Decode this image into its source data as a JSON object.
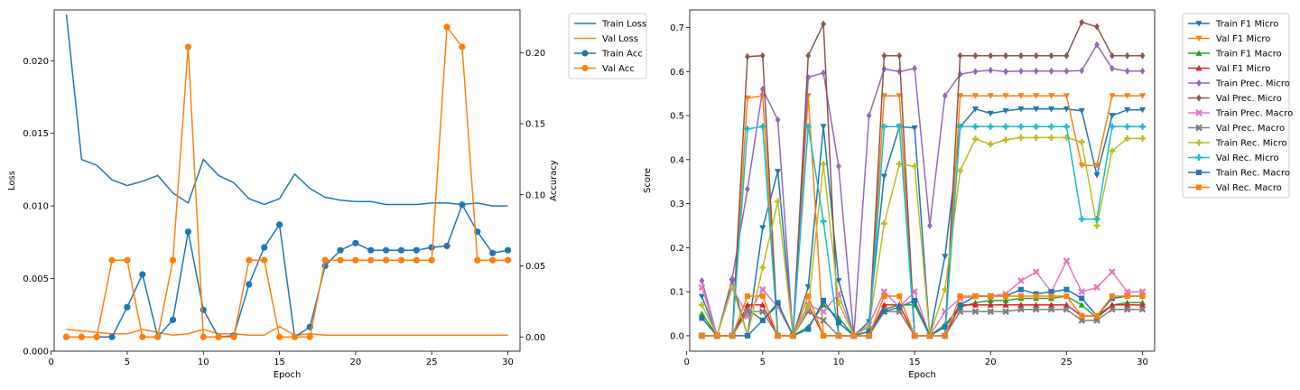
{
  "chart_data": [
    {
      "type": "line",
      "xlabel": "Epoch",
      "ylabel": "Loss",
      "ylabel_right": "Accuracy",
      "xlim": [
        1,
        30
      ],
      "xticks": [
        0,
        5,
        10,
        15,
        20,
        25,
        30
      ],
      "ylim": [
        0,
        0.0235
      ],
      "yticks": [
        0.0,
        0.005,
        0.01,
        0.015,
        0.02
      ],
      "ytick_labels": [
        "0.000",
        "0.005",
        "0.010",
        "0.015",
        "0.020"
      ],
      "ylim_right": [
        -0.01,
        0.23
      ],
      "yticks_right": [
        0.0,
        0.05,
        0.1,
        0.15,
        0.2
      ],
      "ytick_labels_right": [
        "0.00",
        "0.05",
        "0.10",
        "0.15",
        "0.20"
      ],
      "grid": false,
      "legend_position": "outside-right-top",
      "x": [
        1,
        2,
        3,
        4,
        5,
        6,
        7,
        8,
        9,
        10,
        11,
        12,
        13,
        14,
        15,
        16,
        17,
        18,
        19,
        20,
        21,
        22,
        23,
        24,
        25,
        26,
        27,
        28,
        29,
        30
      ],
      "series": [
        {
          "name": "Train Loss",
          "axis": "left",
          "color": "#1f77b4",
          "marker": "none",
          "values": [
            0.0232,
            0.0132,
            0.0128,
            0.0118,
            0.0114,
            0.0117,
            0.0121,
            0.0109,
            0.0102,
            0.0132,
            0.0121,
            0.0116,
            0.0105,
            0.0101,
            0.0105,
            0.0122,
            0.0112,
            0.0106,
            0.0104,
            0.0103,
            0.0103,
            0.0101,
            0.0101,
            0.0101,
            0.0102,
            0.0102,
            0.0101,
            0.0102,
            0.01,
            0.01
          ]
        },
        {
          "name": "Val Loss",
          "axis": "left",
          "color": "#ff7f0e",
          "marker": "none",
          "values": [
            0.0015,
            0.0014,
            0.0013,
            0.0012,
            0.0012,
            0.0015,
            0.0013,
            0.0011,
            0.0012,
            0.0015,
            0.0012,
            0.0012,
            0.0011,
            0.0011,
            0.0017,
            0.0011,
            0.0012,
            0.0011,
            0.0011,
            0.0011,
            0.0011,
            0.0011,
            0.0011,
            0.0011,
            0.0011,
            0.0011,
            0.0011,
            0.0011,
            0.0011,
            0.0011
          ]
        },
        {
          "name": "Train Acc",
          "axis": "right",
          "color": "#1f77b4",
          "marker": "circle",
          "values": [
            0.0,
            0.0,
            0.0,
            0.0,
            0.021,
            0.044,
            0.0,
            0.012,
            0.074,
            0.019,
            0.0,
            0.001,
            0.037,
            0.063,
            0.079,
            0.0,
            0.007,
            0.05,
            0.061,
            0.066,
            0.061,
            0.061,
            0.061,
            0.061,
            0.063,
            0.064,
            0.093,
            0.074,
            0.059,
            0.061
          ]
        },
        {
          "name": "Val Acc",
          "axis": "right",
          "color": "#ff7f0e",
          "marker": "circle",
          "values": [
            0.0,
            0.0,
            0.0,
            0.054,
            0.054,
            0.0,
            0.0,
            0.054,
            0.204,
            0.0,
            0.0,
            0.0,
            0.054,
            0.054,
            0.0,
            0.0,
            0.0,
            0.054,
            0.054,
            0.054,
            0.054,
            0.054,
            0.054,
            0.054,
            0.054,
            0.218,
            0.204,
            0.054,
            0.054,
            0.054
          ]
        }
      ]
    },
    {
      "type": "line",
      "xlabel": "Epoch",
      "ylabel": "Score",
      "xlim": [
        1,
        30
      ],
      "xticks": [
        0,
        5,
        10,
        15,
        20,
        25,
        30
      ],
      "ylim": [
        -0.035,
        0.74
      ],
      "yticks": [
        0.0,
        0.1,
        0.2,
        0.3,
        0.4,
        0.5,
        0.6,
        0.7
      ],
      "ytick_labels": [
        "0.0",
        "0.1",
        "0.2",
        "0.3",
        "0.4",
        "0.5",
        "0.6",
        "0.7"
      ],
      "grid": false,
      "legend_position": "outside-right-top",
      "x": [
        1,
        2,
        3,
        4,
        5,
        6,
        7,
        8,
        9,
        10,
        11,
        12,
        13,
        14,
        15,
        16,
        17,
        18,
        19,
        20,
        21,
        22,
        23,
        24,
        25,
        26,
        27,
        28,
        29,
        30
      ],
      "series": [
        {
          "name": "Train F1 Micro",
          "color": "#1f77b4",
          "marker": "tri-down",
          "values": [
            0.089,
            0.0,
            0.123,
            0.0,
            0.245,
            0.373,
            0.0,
            0.111,
            0.475,
            0.125,
            0.0,
            0.032,
            0.362,
            0.475,
            0.472,
            0.0,
            0.18,
            0.474,
            0.515,
            0.505,
            0.511,
            0.515,
            0.515,
            0.515,
            0.515,
            0.511,
            0.365,
            0.5,
            0.513,
            0.513
          ]
        },
        {
          "name": "Val F1 Micro",
          "color": "#ff7f0e",
          "marker": "tri-down",
          "values": [
            0.0,
            0.0,
            0.0,
            0.54,
            0.545,
            0.0,
            0.0,
            0.545,
            0.0,
            0.0,
            0.0,
            0.0,
            0.545,
            0.545,
            0.0,
            0.0,
            0.0,
            0.545,
            0.545,
            0.545,
            0.545,
            0.545,
            0.545,
            0.545,
            0.545,
            0.387,
            0.387,
            0.545,
            0.545,
            0.545
          ]
        },
        {
          "name": "Train F1 Macro",
          "color": "#2ca02c",
          "marker": "tri-up",
          "values": [
            0.05,
            0.0,
            0.0,
            0.06,
            0.035,
            0.07,
            0.0,
            0.02,
            0.07,
            0.04,
            0.0,
            0.01,
            0.06,
            0.07,
            0.07,
            0.0,
            0.025,
            0.065,
            0.075,
            0.08,
            0.08,
            0.085,
            0.085,
            0.085,
            0.09,
            0.07,
            0.04,
            0.07,
            0.075,
            0.075
          ]
        },
        {
          "name": "Val F1 Micro",
          "color": "#d62728",
          "marker": "tri-up",
          "values": [
            0.0,
            0.0,
            0.0,
            0.07,
            0.07,
            0.0,
            0.0,
            0.07,
            0.0,
            0.0,
            0.0,
            0.0,
            0.07,
            0.07,
            0.0,
            0.0,
            0.0,
            0.07,
            0.07,
            0.07,
            0.07,
            0.07,
            0.07,
            0.07,
            0.07,
            0.045,
            0.045,
            0.07,
            0.07,
            0.07
          ]
        },
        {
          "name": "Train Prec. Micro",
          "color": "#9467bd",
          "marker": "diamond",
          "values": [
            0.125,
            0.0,
            0.13,
            0.333,
            0.56,
            0.49,
            0.0,
            0.587,
            0.597,
            0.385,
            0.0,
            0.5,
            0.606,
            0.6,
            0.607,
            0.25,
            0.545,
            0.594,
            0.6,
            0.603,
            0.6,
            0.601,
            0.601,
            0.601,
            0.601,
            0.602,
            0.661,
            0.607,
            0.601,
            0.601
          ]
        },
        {
          "name": "Val Prec. Micro",
          "color": "#8c564b",
          "marker": "diamond",
          "values": [
            0.0,
            0.0,
            0.0,
            0.634,
            0.636,
            0.0,
            0.0,
            0.636,
            0.708,
            0.0,
            0.0,
            0.0,
            0.636,
            0.636,
            0.0,
            0.0,
            0.0,
            0.636,
            0.636,
            0.636,
            0.636,
            0.636,
            0.636,
            0.636,
            0.636,
            0.712,
            0.702,
            0.636,
            0.636,
            0.636
          ]
        },
        {
          "name": "Train Prec. Macro",
          "color": "#e377c2",
          "marker": "x",
          "values": [
            0.11,
            0.0,
            0.11,
            0.045,
            0.105,
            0.065,
            0.0,
            0.07,
            0.055,
            0.095,
            0.0,
            0.025,
            0.1,
            0.065,
            0.1,
            0.0,
            0.055,
            0.085,
            0.09,
            0.09,
            0.095,
            0.125,
            0.145,
            0.1,
            0.17,
            0.1,
            0.11,
            0.145,
            0.1,
            0.1
          ]
        },
        {
          "name": "Val Prec. Macro",
          "color": "#7f7f7f",
          "marker": "x",
          "values": [
            0.0,
            0.0,
            0.0,
            0.055,
            0.055,
            0.0,
            0.0,
            0.055,
            0.035,
            0.0,
            0.0,
            0.0,
            0.055,
            0.055,
            0.0,
            0.0,
            0.0,
            0.055,
            0.055,
            0.055,
            0.055,
            0.06,
            0.06,
            0.06,
            0.06,
            0.035,
            0.035,
            0.06,
            0.06,
            0.06
          ]
        },
        {
          "name": "Train Rec. Micro",
          "color": "#bcbd22",
          "marker": "plus",
          "values": [
            0.07,
            0.0,
            0.11,
            0.0,
            0.155,
            0.305,
            0.0,
            0.065,
            0.39,
            0.075,
            0.0,
            0.02,
            0.255,
            0.39,
            0.385,
            0.0,
            0.105,
            0.375,
            0.447,
            0.435,
            0.445,
            0.45,
            0.45,
            0.45,
            0.45,
            0.44,
            0.25,
            0.42,
            0.448,
            0.448
          ]
        },
        {
          "name": "Val Rec. Micro",
          "color": "#17becf",
          "marker": "plus",
          "values": [
            0.0,
            0.0,
            0.0,
            0.47,
            0.475,
            0.0,
            0.0,
            0.475,
            0.26,
            0.0,
            0.0,
            0.0,
            0.475,
            0.475,
            0.0,
            0.0,
            0.0,
            0.475,
            0.475,
            0.475,
            0.475,
            0.475,
            0.475,
            0.475,
            0.475,
            0.265,
            0.265,
            0.475,
            0.475,
            0.475
          ]
        },
        {
          "name": "Train Rec. Macro",
          "color": "#1f77b4",
          "marker": "square",
          "values": [
            0.04,
            0.0,
            0.0,
            0.0,
            0.035,
            0.075,
            0.0,
            0.015,
            0.08,
            0.03,
            0.0,
            0.01,
            0.055,
            0.065,
            0.08,
            0.0,
            0.02,
            0.07,
            0.09,
            0.09,
            0.09,
            0.105,
            0.095,
            0.1,
            0.105,
            0.085,
            0.045,
            0.085,
            0.09,
            0.09
          ]
        },
        {
          "name": "Val Rec. Macro",
          "color": "#ff7f0e",
          "marker": "square",
          "values": [
            0.0,
            0.0,
            0.0,
            0.09,
            0.09,
            0.0,
            0.0,
            0.09,
            0.0,
            0.0,
            0.0,
            0.0,
            0.09,
            0.09,
            0.0,
            0.0,
            0.0,
            0.09,
            0.09,
            0.09,
            0.09,
            0.09,
            0.09,
            0.09,
            0.09,
            0.045,
            0.045,
            0.09,
            0.09,
            0.09
          ]
        }
      ]
    }
  ]
}
